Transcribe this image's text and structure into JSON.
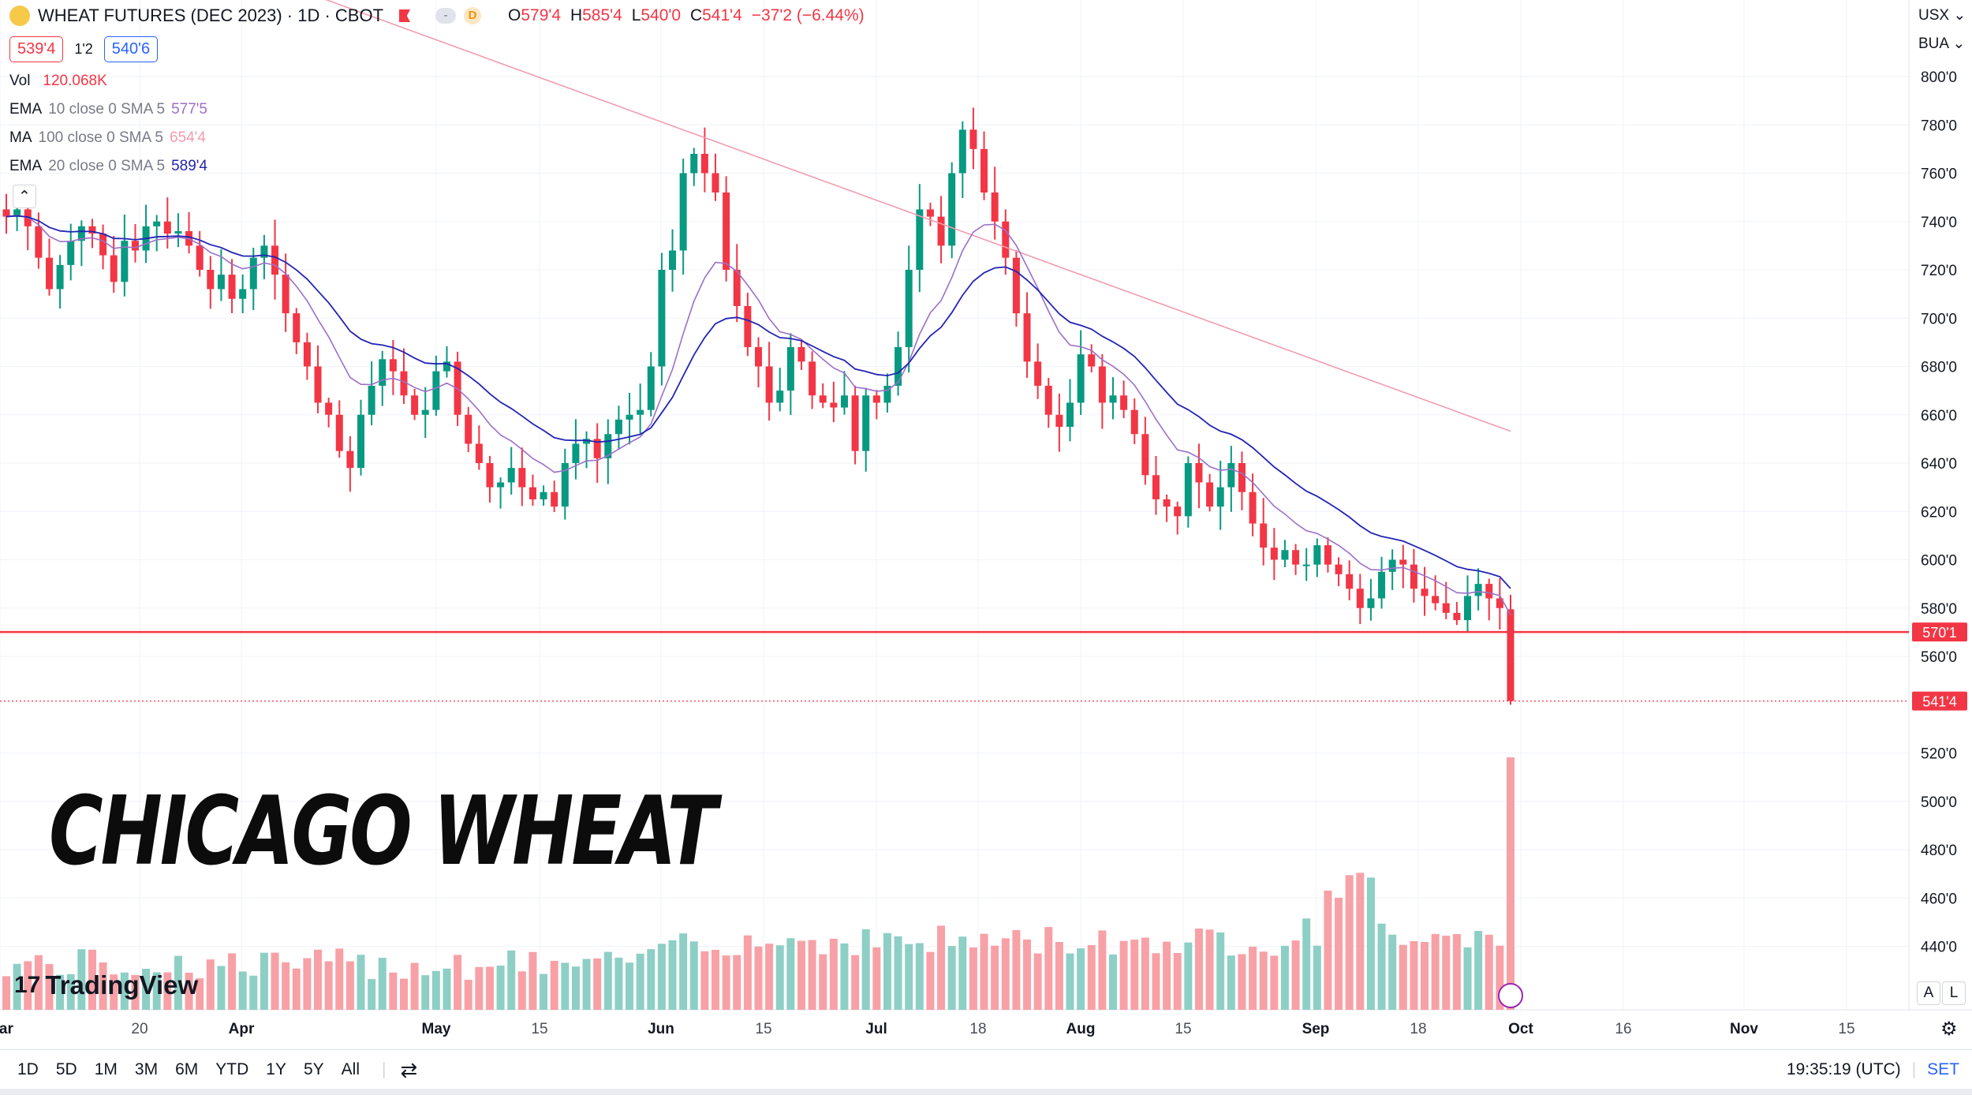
{
  "header": {
    "symbol_title": "WHEAT FUTURES (DEC 2023) · 1D · CBOT",
    "dash_label": "-",
    "delay_badge": "D",
    "open_label": "O",
    "open": "579'4",
    "high_label": "H",
    "high": "585'4",
    "low_label": "L",
    "low": "540'0",
    "close_label": "C",
    "close": "541'4",
    "change": "−37'2 (−6.44%)"
  },
  "trade": {
    "sell": "539'4",
    "spread": "1'2",
    "buy": "540'6"
  },
  "indicators": [
    {
      "name": "Vol",
      "params": "",
      "value": "120.068K",
      "color": "#f23645"
    },
    {
      "name": "EMA",
      "params": "10 close 0 SMA 5",
      "value": "577'5",
      "color": "#9c6fc9"
    },
    {
      "name": "MA",
      "params": "100 close 0 SMA 5",
      "value": "654'4",
      "color": "#f29caf"
    },
    {
      "name": "EMA",
      "params": "20 close 0 SMA 5",
      "value": "589'4",
      "color": "#2224b5"
    }
  ],
  "currency": "USX",
  "unit": "BUA",
  "overlay_title": "CHICAGO WHEAT",
  "brand": "TradingView",
  "axis_buttons": {
    "auto": "A",
    "log": "L"
  },
  "timeframes": [
    "1D",
    "5D",
    "1M",
    "3M",
    "6M",
    "YTD",
    "1Y",
    "5Y",
    "All"
  ],
  "clock": "19:35:19 (UTC)",
  "session": "SET",
  "colors": {
    "up": "#089981",
    "down": "#f23645",
    "up_vol": "#8dcfc5",
    "down_vol": "#f7a1a6",
    "ema10": "#9c6fc9",
    "ema20": "#2224b5",
    "ma100": "#f29caf",
    "accent": "#2962ff"
  },
  "chart_data": {
    "type": "candlestick",
    "title": "WHEAT FUTURES (DEC 2023) · 1D · CBOT",
    "price_axis": {
      "ticks": [
        "800'0",
        "780'0",
        "760'0",
        "740'0",
        "720'0",
        "700'0",
        "680'0",
        "660'0",
        "640'0",
        "620'0",
        "600'0",
        "580'0",
        "560'0",
        "520'0",
        "500'0",
        "480'0",
        "460'0",
        "440'0"
      ],
      "ylim": [
        420,
        810
      ]
    },
    "price_labels": [
      {
        "label": "570'1",
        "value": 570.1,
        "style": "solid"
      },
      {
        "label": "541'4",
        "value": 541.5,
        "style": "dotted"
      }
    ],
    "time_axis": {
      "ticks": [
        "Mar",
        "20",
        "Apr",
        "May",
        "15",
        "Jun",
        "15",
        "Jul",
        "18",
        "Aug",
        "15",
        "Sep",
        "18",
        "Oct",
        "16",
        "Nov",
        "15"
      ]
    },
    "ohlc_anchor_closes": [
      742,
      745,
      738,
      725,
      712,
      722,
      732,
      738,
      735,
      726,
      715,
      732,
      728,
      738,
      740,
      735,
      736,
      730,
      720,
      712,
      718,
      708,
      712,
      725,
      730,
      718,
      702,
      690,
      680,
      665,
      660,
      645,
      638,
      660,
      672,
      683,
      678,
      668,
      660,
      662,
      678,
      682,
      660,
      648,
      640,
      630,
      632,
      638,
      630,
      625,
      628,
      622,
      640,
      648,
      650,
      642,
      652,
      658,
      660,
      662,
      680,
      720,
      728,
      760,
      768,
      760,
      752,
      720,
      705,
      688,
      680,
      665,
      670,
      688,
      682,
      668,
      665,
      663,
      668,
      645,
      668,
      665,
      672,
      688,
      720,
      745,
      742,
      730,
      760,
      778,
      770,
      752,
      740,
      725,
      702,
      682,
      672,
      660,
      655,
      665,
      685,
      680,
      665,
      668,
      662,
      652,
      635,
      625,
      622,
      618,
      640,
      632,
      622,
      630,
      640,
      628,
      615,
      605,
      600,
      604,
      598,
      598,
      606,
      598,
      594,
      588,
      580,
      584,
      595,
      600,
      598,
      588,
      585,
      582,
      578,
      575,
      585,
      590,
      584,
      580,
      541.5
    ],
    "series": [
      {
        "name": "EMA 10",
        "value_last": "577'5"
      },
      {
        "name": "MA 100",
        "value_last": "654'4"
      },
      {
        "name": "EMA 20",
        "value_last": "589'4"
      }
    ],
    "volume_last": "120.068K"
  }
}
